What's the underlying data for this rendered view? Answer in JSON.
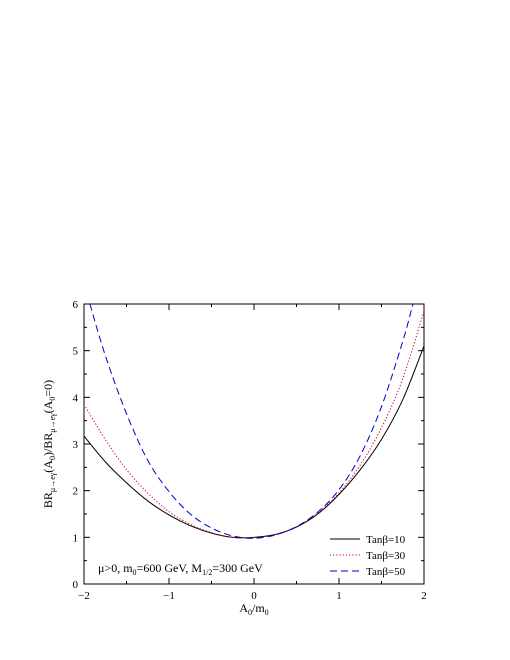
{
  "chart_data": {
    "type": "line",
    "title": "",
    "xlabel": {
      "main": "A",
      "sub1": "0",
      "mid": "/m",
      "sub2": "0"
    },
    "ylabel": {
      "p1": "BR",
      "s1": "μ→eγ",
      "p2": "(A",
      "s2": "0",
      "p3": ")/BR",
      "s3": "μ→eγ",
      "p4": "(A",
      "s4": "0",
      "p5": "=0)"
    },
    "xlim": [
      -2,
      2
    ],
    "ylim": [
      0,
      6
    ],
    "x_ticks": [
      -2,
      -1,
      0,
      1,
      2
    ],
    "x_tick_labels": [
      "−2",
      "−1",
      "0",
      "1",
      "2"
    ],
    "y_ticks": [
      0,
      1,
      2,
      3,
      4,
      5,
      6
    ],
    "y_tick_labels": [
      "0",
      "1",
      "2",
      "3",
      "4",
      "5",
      "6"
    ],
    "grid": false,
    "legend_position": "bottom-right",
    "annotation": {
      "p1": "μ>0, m",
      "s1": "0",
      "p2": "=600 GeV, M",
      "s2": "1/2",
      "p3": "=300 GeV"
    },
    "series": [
      {
        "name": "Tanβ=10",
        "color": "#000000",
        "dash": "solid",
        "x": [
          -2.0,
          -1.75,
          -1.5,
          -1.25,
          -1.0,
          -0.75,
          -0.5,
          -0.25,
          0.0,
          0.25,
          0.5,
          0.75,
          1.0,
          1.25,
          1.5,
          1.75,
          2.0
        ],
        "y": [
          3.17,
          2.62,
          2.17,
          1.78,
          1.48,
          1.25,
          1.09,
          1.0,
          1.0,
          1.06,
          1.22,
          1.5,
          1.92,
          2.45,
          3.1,
          3.95,
          5.1
        ]
      },
      {
        "name": "Tanβ=30",
        "color": "#d00000",
        "dash": "dotted",
        "x": [
          -2.0,
          -1.75,
          -1.5,
          -1.25,
          -1.0,
          -0.75,
          -0.5,
          -0.25,
          0.0,
          0.25,
          0.5,
          0.75,
          1.0,
          1.25,
          1.5,
          1.75,
          2.0
        ],
        "y": [
          3.85,
          3.1,
          2.45,
          1.95,
          1.55,
          1.28,
          1.1,
          1.0,
          0.99,
          1.06,
          1.23,
          1.52,
          1.95,
          2.55,
          3.35,
          4.4,
          5.85
        ]
      },
      {
        "name": "Tanβ=50",
        "color": "#0000c8",
        "dash": "dashed",
        "x": [
          -1.93,
          -1.75,
          -1.5,
          -1.25,
          -1.0,
          -0.75,
          -0.5,
          -0.25,
          0.0,
          0.25,
          0.5,
          0.75,
          1.0,
          1.25,
          1.5,
          1.75,
          1.87
        ],
        "y": [
          6.0,
          4.9,
          3.65,
          2.65,
          1.98,
          1.5,
          1.2,
          1.03,
          0.98,
          1.05,
          1.23,
          1.54,
          2.02,
          2.75,
          3.8,
          5.2,
          6.0
        ]
      }
    ]
  }
}
